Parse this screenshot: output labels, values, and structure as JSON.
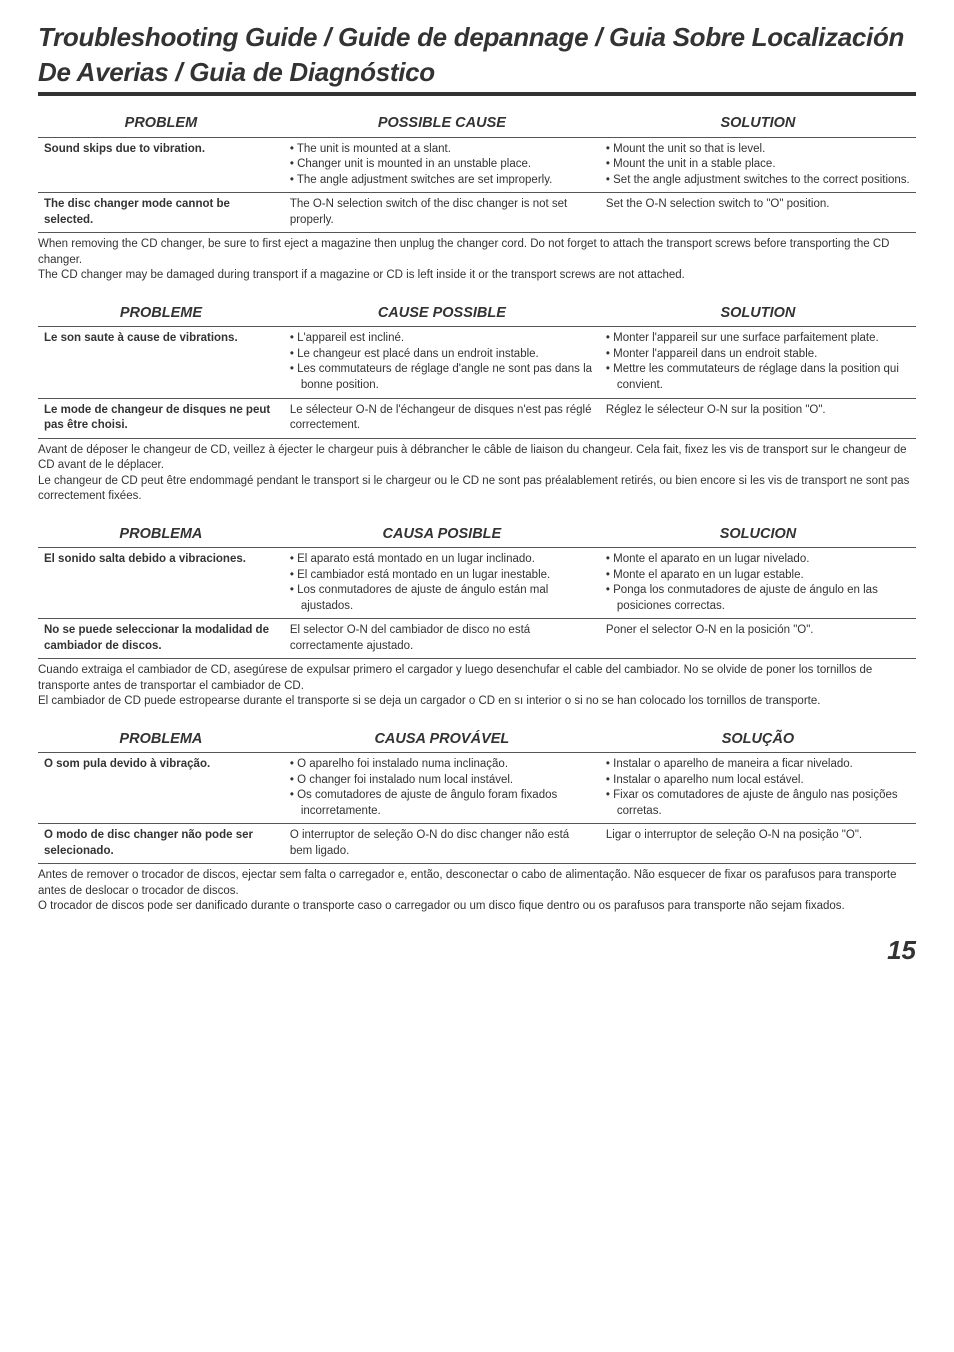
{
  "title": "Troubleshooting Guide / Guide de depannage / Guia Sobre Localización De Averias / Guia de Diagnóstico",
  "page_number": "15",
  "sections": [
    {
      "headers": [
        "PROBLEM",
        "POSSIBLE CAUSE",
        "SOLUTION"
      ],
      "rows": [
        {
          "problem": "Sound skips due to vibration.",
          "cause": [
            "The unit is mounted at a slant.",
            "Changer unit is mounted in an unstable place.",
            "The angle adjustment switches are set improperly."
          ],
          "solution": [
            "Mount the unit so that is level.",
            "Mount the unit in a stable place.",
            "Set the angle adjustment switches to the correct positions."
          ]
        },
        {
          "problem": "The disc changer mode cannot be selected.",
          "cause_plain": "The O-N selection switch of the disc changer is not set properly.",
          "solution_plain": "Set the O-N selection switch to \"O\" position."
        }
      ],
      "notes": [
        "When removing the CD changer, be sure to first eject a magazine then unplug the changer cord. Do not forget to attach the transport screws before transporting the CD changer.",
        "The CD changer may be damaged during transport if a magazine or CD is left inside it or the transport screws are not attached."
      ]
    },
    {
      "headers": [
        "PROBLEME",
        "CAUSE POSSIBLE",
        "SOLUTION"
      ],
      "rows": [
        {
          "problem": "Le son saute à cause de vibrations.",
          "cause": [
            "L'appareil est incliné.",
            "Le changeur est placé dans un endroit instable.",
            "Les commutateurs de réglage d'angle ne sont pas dans la bonne position."
          ],
          "solution": [
            "Monter l'appareil sur une surface parfaitement plate.",
            "Monter l'appareil dans un endroit stable.",
            "Mettre les commutateurs de réglage dans la position qui convient."
          ]
        },
        {
          "problem": "Le mode de changeur de disques ne peut pas être choisi.",
          "cause_plain": "Le sélecteur O-N de l'échangeur de disques n'est pas réglé correctement.",
          "solution_plain": "Réglez le sélecteur O-N sur la position \"O\"."
        }
      ],
      "notes": [
        "Avant de déposer le changeur de CD, veillez à éjecter le chargeur puis à  débrancher le câble de liaison du changeur. Cela fait, fixez les vis de transport sur le changeur de CD avant de le déplacer.",
        "Le changeur de CD peut être endommagé pendant le transport si le chargeur ou le CD ne sont pas préalablement retirés, ou bien encore si les vis de transport ne sont pas correctement fixées."
      ]
    },
    {
      "headers": [
        "PROBLEMA",
        "CAUSA POSIBLE",
        "SOLUCION"
      ],
      "rows": [
        {
          "problem": "El sonido salta debido a vibraciones.",
          "cause": [
            "El aparato está montado en un lugar inclinado.",
            "El cambiador está montado en un lugar inestable.",
            "Los conmutadores de ajuste de ángulo están mal ajustados."
          ],
          "solution": [
            "Monte el aparato en un lugar nivelado.",
            "Monte el aparato en un lugar estable.",
            "Ponga los conmutadores de ajuste de ángulo en las posiciones correctas."
          ]
        },
        {
          "problem": "No se puede seleccionar la modalidad de cambiador de discos.",
          "cause_plain": "El selector O-N del cambiador de disco no está correctamente ajustado.",
          "solution_plain": "Poner el selector O-N en la posición \"O\"."
        }
      ],
      "notes": [
        "Cuando extraiga el cambiador de CD, asegúrese de expulsar primero el cargador y luego desenchufar el cable del cambiador. No se olvide de poner los tornillos de transporte antes de transportar el cambiador de CD.",
        "El cambiador de CD puede estropearse durante el transporte si se deja un cargador o CD en sı interior o si no se han colocado los tornillos de transporte."
      ]
    },
    {
      "headers": [
        "PROBLEMA",
        "CAUSA PROVÁVEL",
        "SOLUÇÃO"
      ],
      "rows": [
        {
          "problem": "O som pula devido à vibração.",
          "cause": [
            "O aparelho foi instalado numa inclinação.",
            "O changer foi instalado num local instável.",
            "Os comutadores de ajuste de ângulo foram fixados incorretamente."
          ],
          "solution": [
            "Instalar o aparelho de maneira a ficar nivelado.",
            "Instalar o aparelho num local estável.",
            "Fixar os comutadores de ajuste de ângulo nas posições corretas."
          ]
        },
        {
          "problem": "O modo de disc changer não pode ser selecionado.",
          "cause_plain": "O interruptor de seleção O-N do disc changer não está bem ligado.",
          "solution_plain": "Ligar o interruptor de seleção O-N na posição \"O\"."
        }
      ],
      "notes": [
        "Antes de remover o trocador de discos, ejectar sem falta o carregador e, então, desconectar o cabo de alimentação. Não esquecer de fixar os parafusos para transporte antes de deslocar o trocador de discos.",
        "O trocador de discos pode ser danificado durante o transporte caso o carregador ou um disco fique dentro ou os parafusos para transporte não sejam fixados."
      ]
    }
  ]
}
